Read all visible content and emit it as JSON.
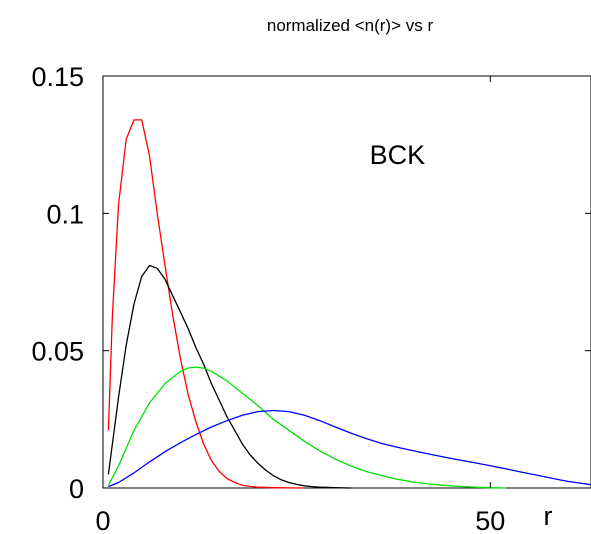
{
  "chart_data": {
    "type": "line",
    "title": "normalized <n(r)> vs r",
    "xlabel": "r",
    "ylabel": "",
    "xlim": [
      0,
      63
    ],
    "ylim": [
      0,
      0.15
    ],
    "x_ticks": [
      {
        "value": 0,
        "label": "0"
      },
      {
        "value": 50,
        "label": "50"
      }
    ],
    "y_ticks": [
      {
        "value": 0,
        "label": "0"
      },
      {
        "value": 0.05,
        "label": "0.05"
      },
      {
        "value": 0.1,
        "label": "0.1"
      },
      {
        "value": 0.15,
        "label": "0.15"
      }
    ],
    "grid": false,
    "annotations": [
      {
        "text": "BCK",
        "x": 38,
        "y": 0.118
      }
    ],
    "series": [
      {
        "color": "#ff0000",
        "x": [
          0.7,
          1.2,
          2,
          3,
          4,
          5,
          6,
          7,
          8,
          9,
          10,
          11,
          12,
          13,
          14,
          15,
          16,
          17,
          18,
          19,
          20,
          22,
          24,
          26
        ],
        "y": [
          0.021,
          0.062,
          0.103,
          0.127,
          0.134,
          0.134,
          0.121,
          0.1,
          0.081,
          0.063,
          0.047,
          0.034,
          0.024,
          0.016,
          0.01,
          0.006,
          0.0035,
          0.002,
          0.001,
          0.0006,
          0.0003,
          0.0001,
          3e-05,
          0
        ]
      },
      {
        "color": "#000000",
        "x": [
          0.7,
          2,
          3,
          4,
          5,
          6,
          7,
          8,
          9,
          10,
          11,
          12,
          13,
          14,
          15,
          16,
          17,
          18,
          19,
          20,
          21,
          22,
          23,
          24,
          25,
          26,
          27,
          28,
          30,
          32
        ],
        "y": [
          0.005,
          0.033,
          0.052,
          0.067,
          0.077,
          0.081,
          0.08,
          0.076,
          0.07,
          0.064,
          0.058,
          0.051,
          0.045,
          0.038,
          0.032,
          0.026,
          0.021,
          0.016,
          0.012,
          0.009,
          0.0065,
          0.0045,
          0.003,
          0.002,
          0.0013,
          0.0008,
          0.0005,
          0.0003,
          0.0001,
          0
        ]
      },
      {
        "color": "#00e000",
        "x": [
          0.7,
          2,
          4,
          6,
          8,
          10,
          11,
          12,
          13,
          14,
          16,
          18,
          20,
          22,
          24,
          26,
          28,
          30,
          32,
          34,
          36,
          38,
          40,
          42,
          44,
          46,
          48,
          50,
          52
        ],
        "y": [
          0.001,
          0.008,
          0.021,
          0.031,
          0.038,
          0.0425,
          0.0437,
          0.044,
          0.0436,
          0.0425,
          0.039,
          0.0345,
          0.03,
          0.025,
          0.021,
          0.017,
          0.0135,
          0.0105,
          0.008,
          0.006,
          0.0045,
          0.0032,
          0.0022,
          0.0015,
          0.001,
          0.0006,
          0.0003,
          0.0001,
          0
        ]
      },
      {
        "color": "#0000ff",
        "x": [
          0.7,
          2,
          4,
          6,
          8,
          10,
          12,
          14,
          16,
          18,
          20,
          22,
          24,
          26,
          28,
          30,
          32,
          34,
          36,
          38,
          40,
          42,
          44,
          46,
          48,
          50,
          52,
          54,
          56,
          58,
          60,
          63
        ],
        "y": [
          0.0005,
          0.002,
          0.0055,
          0.0095,
          0.0132,
          0.0165,
          0.0195,
          0.0222,
          0.0245,
          0.0265,
          0.0278,
          0.0282,
          0.0278,
          0.0265,
          0.0245,
          0.0222,
          0.02,
          0.018,
          0.0162,
          0.0148,
          0.0136,
          0.0124,
          0.0113,
          0.0102,
          0.0092,
          0.0081,
          0.007,
          0.0058,
          0.0047,
          0.0035,
          0.0024,
          0.0012
        ]
      }
    ]
  }
}
